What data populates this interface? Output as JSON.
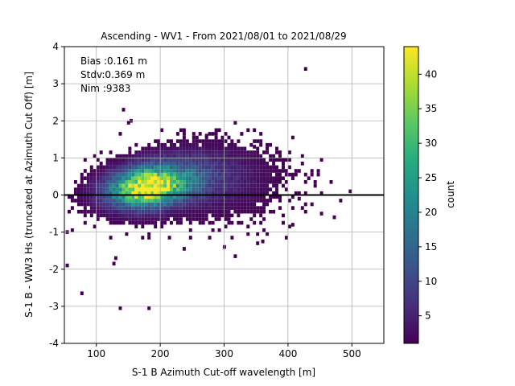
{
  "chart_data": {
    "type": "heatmap",
    "title": "Ascending - WV1 - From 2021/08/01 to 2021/08/29",
    "xlabel": "S-1 B Azimuth Cut-off wavelength [m]",
    "ylabel": "S-1 B - WW3 Hs (truncated at Azimuth Cut Off) [m]",
    "xlim": [
      50,
      550
    ],
    "ylim": [
      -4,
      4
    ],
    "xticks": [
      100,
      200,
      300,
      400,
      500
    ],
    "yticks": [
      -4,
      -3,
      -2,
      -1,
      0,
      1,
      2,
      3,
      4
    ],
    "grid": true,
    "reference_line_y": 0,
    "annotations": [
      "Bias :0.161 m",
      "Stdv:0.369 m",
      "Nim :9383"
    ],
    "colorbar": {
      "label": "count",
      "colormap": "viridis",
      "range": [
        1,
        44
      ],
      "ticks": [
        5,
        10,
        15,
        20,
        25,
        30,
        35,
        40
      ]
    },
    "bins": {
      "x_width": 5,
      "y_height": 0.1
    },
    "density_clusters": [
      {
        "x_center": 175,
        "y_center": 0.15,
        "x_spread": 40,
        "y_spread": 0.35,
        "peak_count": 42
      },
      {
        "x_center": 230,
        "y_center": 0.45,
        "x_spread": 55,
        "y_spread": 0.45,
        "peak_count": 10
      },
      {
        "x_center": 300,
        "y_center": 0.2,
        "x_spread": 60,
        "y_spread": 0.6,
        "peak_count": 3
      }
    ],
    "outliers": [
      {
        "x": 52,
        "y": -1.05
      },
      {
        "x": 52,
        "y": -1.95
      },
      {
        "x": 75,
        "y": -2.7
      },
      {
        "x": 135,
        "y": -3.1
      },
      {
        "x": 180,
        "y": -3.1
      },
      {
        "x": 125,
        "y": -1.9
      },
      {
        "x": 128,
        "y": -1.75
      },
      {
        "x": 140,
        "y": 2.25
      },
      {
        "x": 148,
        "y": 1.9
      },
      {
        "x": 152,
        "y": 1.95
      },
      {
        "x": 425,
        "y": 3.35
      },
      {
        "x": 315,
        "y": -1.7
      },
      {
        "x": 298,
        "y": -1.45
      },
      {
        "x": 350,
        "y": -1.35
      },
      {
        "x": 450,
        "y": -0.55
      },
      {
        "x": 470,
        "y": -0.65
      },
      {
        "x": 480,
        "y": -0.2
      },
      {
        "x": 495,
        "y": 0.05
      },
      {
        "x": 405,
        "y": -0.85
      },
      {
        "x": 358,
        "y": -1.3
      },
      {
        "x": 315,
        "y": 1.9
      },
      {
        "x": 380,
        "y": 1.1
      },
      {
        "x": 415,
        "y": -0.15
      },
      {
        "x": 250,
        "y": 1.6
      },
      {
        "x": 270,
        "y": 1.55
      },
      {
        "x": 120,
        "y": -1.2
      },
      {
        "x": 212,
        "y": -1.2
      },
      {
        "x": 345,
        "y": 1.25
      }
    ]
  }
}
